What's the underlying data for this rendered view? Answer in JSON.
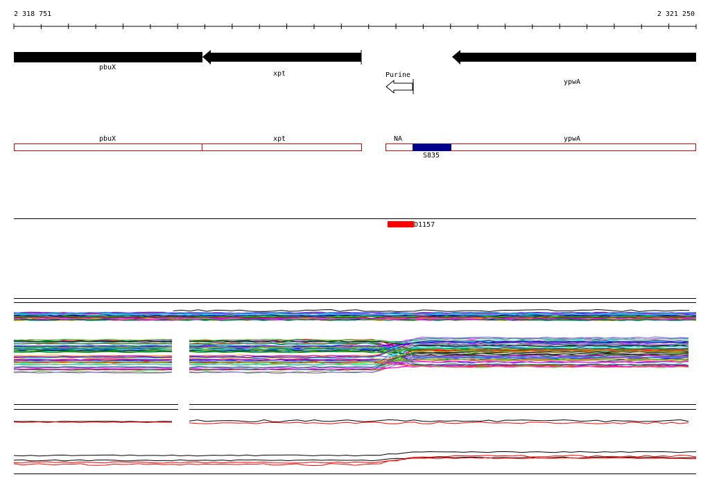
{
  "ruler": {
    "start": "2 318 751",
    "end": "2 321 250"
  },
  "genes": {
    "pbuX": "pbuX",
    "xpt": "xpt",
    "ypwA": "ypwA",
    "purine": "Purine"
  },
  "features": {
    "pbuX": "pbuX",
    "xpt": "xpt",
    "na": "NA",
    "ypwA": "ypwA",
    "s835": "S835"
  },
  "probe": {
    "label": "D1157"
  }
}
